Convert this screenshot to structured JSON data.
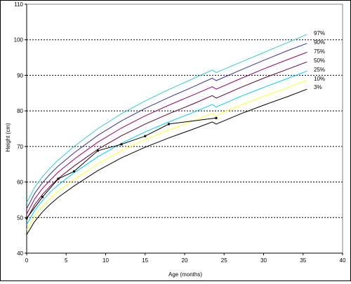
{
  "chart_data": {
    "type": "line",
    "title": "",
    "xlabel": "Age (months)",
    "ylabel": "Height (cm)",
    "xlim": [
      0,
      40
    ],
    "ylim": [
      40,
      110
    ],
    "xticks": [
      0,
      5,
      10,
      15,
      20,
      25,
      30,
      35,
      40
    ],
    "yticks": [
      40,
      50,
      60,
      70,
      80,
      90,
      100,
      110
    ],
    "grid": "horizontal dashed",
    "series": [
      {
        "name": "97%",
        "color": "#33cccc",
        "x": [
          0,
          1,
          2,
          3,
          4,
          6,
          9,
          12,
          15,
          18,
          21,
          23.5,
          24,
          27,
          30,
          33,
          35.5
        ],
        "y": [
          54.2,
          58.5,
          61.5,
          64.0,
          66.2,
          70.0,
          75.0,
          79.2,
          82.8,
          86.0,
          89.0,
          91.5,
          90.8,
          93.6,
          96.4,
          99.2,
          101.5
        ]
      },
      {
        "name": "90%",
        "color": "#333399",
        "x": [
          0,
          1,
          2,
          3,
          4,
          6,
          9,
          12,
          15,
          18,
          21,
          23.5,
          24,
          27,
          30,
          33,
          35.5
        ],
        "y": [
          52.5,
          56.8,
          59.8,
          62.3,
          64.5,
          68.2,
          73.1,
          77.2,
          80.7,
          83.8,
          86.7,
          89.2,
          88.5,
          91.4,
          94.2,
          96.9,
          99.0
        ]
      },
      {
        "name": "75%",
        "color": "#990066",
        "x": [
          0,
          1,
          2,
          3,
          4,
          6,
          9,
          12,
          15,
          18,
          21,
          23.5,
          24,
          27,
          30,
          33,
          35.5
        ],
        "y": [
          51.0,
          55.2,
          58.2,
          60.6,
          62.8,
          66.4,
          71.2,
          75.2,
          78.6,
          81.6,
          84.4,
          86.8,
          86.1,
          89.0,
          91.8,
          94.4,
          96.5
        ]
      },
      {
        "name": "50%",
        "color": "#660033",
        "x": [
          0,
          1,
          2,
          3,
          4,
          6,
          9,
          12,
          15,
          18,
          21,
          23.5,
          24,
          27,
          30,
          33,
          35.5
        ],
        "y": [
          49.5,
          53.6,
          56.5,
          58.9,
          61.0,
          64.5,
          69.2,
          73.0,
          76.3,
          79.2,
          81.9,
          84.3,
          83.6,
          86.5,
          89.2,
          91.7,
          93.8
        ]
      },
      {
        "name": "25%",
        "color": "#00ccff",
        "x": [
          0,
          1,
          2,
          3,
          4,
          6,
          9,
          12,
          15,
          18,
          21,
          23.5,
          24,
          27,
          30,
          33,
          35.5
        ],
        "y": [
          48.0,
          52.0,
          54.8,
          57.2,
          59.2,
          62.6,
          67.1,
          70.9,
          74.1,
          76.9,
          79.5,
          81.8,
          81.1,
          84.0,
          86.6,
          89.1,
          91.2
        ]
      },
      {
        "name": "10%",
        "color": "#ffff33",
        "x": [
          0,
          1,
          2,
          3,
          4,
          6,
          9,
          12,
          15,
          18,
          21,
          23.5,
          24,
          27,
          30,
          33,
          35.5
        ],
        "y": [
          46.5,
          50.4,
          53.2,
          55.5,
          57.4,
          60.7,
          65.1,
          68.8,
          71.9,
          74.6,
          77.1,
          79.3,
          78.7,
          81.5,
          84.1,
          86.5,
          88.6
        ]
      },
      {
        "name": "3%",
        "color": "#000000",
        "x": [
          0,
          1,
          2,
          3,
          4,
          6,
          9,
          12,
          15,
          18,
          21,
          23.5,
          24,
          27,
          30,
          33,
          35.5
        ],
        "y": [
          45.2,
          48.9,
          51.6,
          53.8,
          55.7,
          58.9,
          63.2,
          66.8,
          69.8,
          72.4,
          74.8,
          76.9,
          76.3,
          79.1,
          81.6,
          84.0,
          86.1
        ]
      },
      {
        "name": "",
        "color": "#000000",
        "markers": true,
        "x": [
          0,
          2,
          4,
          6,
          9,
          12,
          15,
          18,
          24
        ],
        "y": [
          49.8,
          55.8,
          60.9,
          63.0,
          68.8,
          70.6,
          72.9,
          76.3,
          78.0
        ]
      }
    ]
  }
}
